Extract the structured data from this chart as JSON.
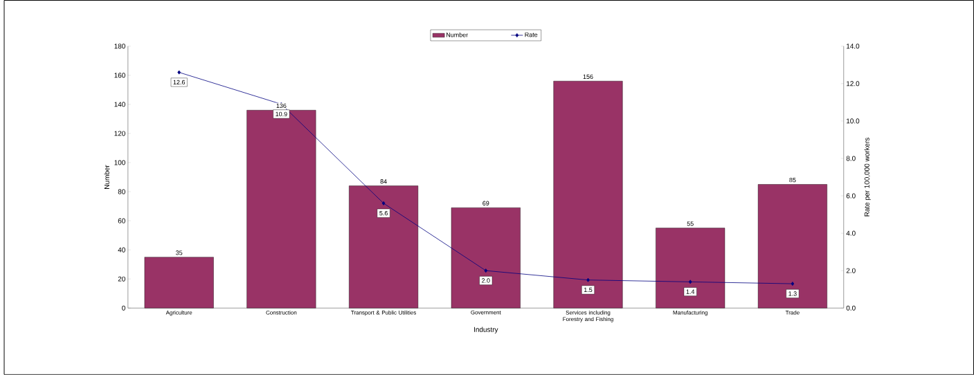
{
  "chart_data": {
    "type": "bar",
    "xlabel": "Industry",
    "ylabel": "Number",
    "y2label": "Rate per 100,000 workers",
    "categories": [
      "Agriculture",
      "Construction",
      "Transport & Public Utilities",
      "Government",
      "Services including Forestry and Fishing",
      "Manufacturing",
      "Trade"
    ],
    "series": [
      {
        "name": "Number",
        "color": "#993366",
        "values": [
          35,
          136,
          84,
          69,
          156,
          55,
          85
        ],
        "value_labels": [
          "35",
          "136",
          "84",
          "69",
          "156",
          "55",
          "85"
        ]
      },
      {
        "name": "Rate",
        "type": "line",
        "axis": "y2",
        "color": "#000080",
        "marker": "diamond",
        "values": [
          12.6,
          10.9,
          5.6,
          2.0,
          1.5,
          1.4,
          1.3
        ],
        "value_labels": [
          "12.6",
          "10.9",
          "5.6",
          "2.0",
          "1.5",
          "1.4",
          "1.3"
        ]
      }
    ],
    "ylim": [
      0,
      180
    ],
    "yticks": [
      0,
      20,
      40,
      60,
      80,
      100,
      120,
      140,
      160,
      180
    ],
    "y2lim": [
      0,
      14
    ],
    "y2ticks": [
      {
        "value": 0,
        "label": "0.0"
      },
      {
        "value": 2,
        "label": "2.0"
      },
      {
        "value": 4,
        "label": "4.0"
      },
      {
        "value": 6,
        "label": "6.0"
      },
      {
        "value": 8,
        "label": "8.0"
      },
      {
        "value": 10,
        "label": "10.0"
      },
      {
        "value": 12,
        "label": "12.0"
      },
      {
        "value": 14,
        "label": "14.0"
      }
    ],
    "legend": "top"
  }
}
